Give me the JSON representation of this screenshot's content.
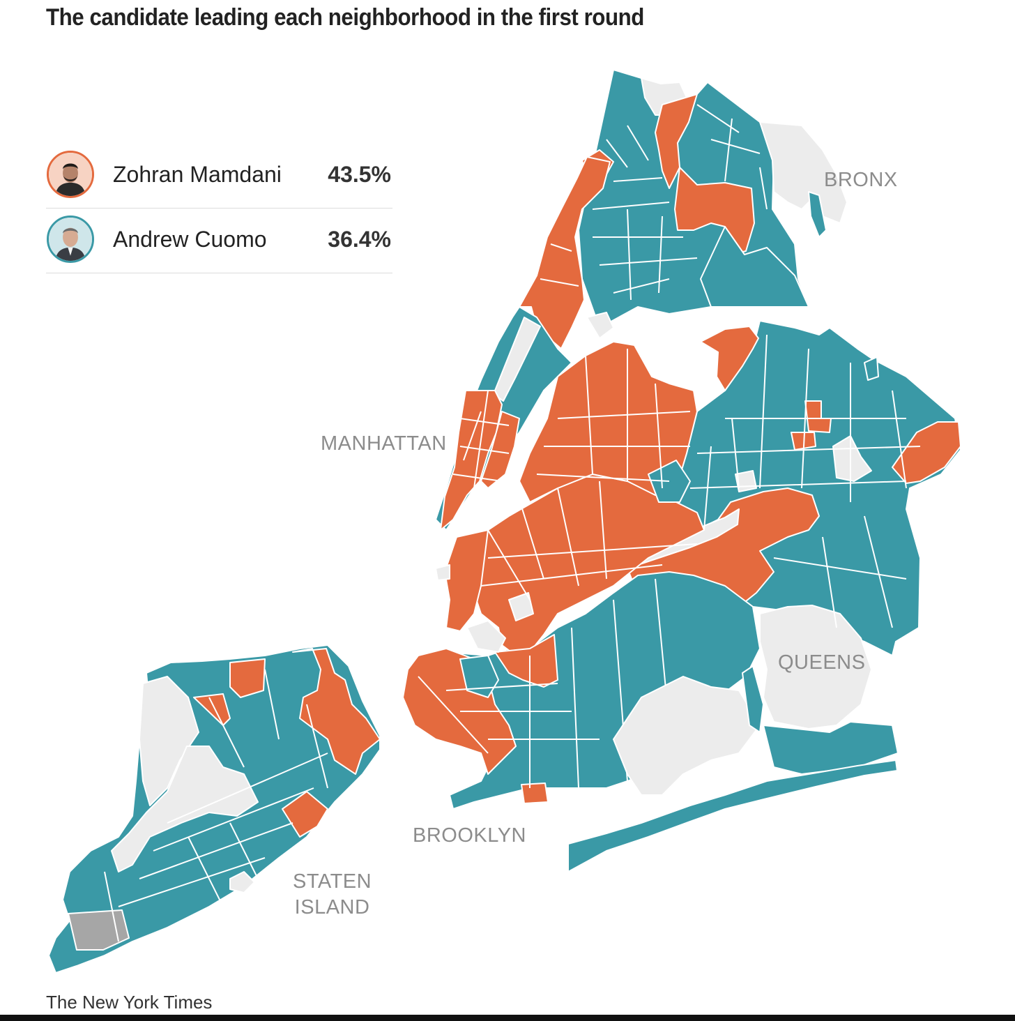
{
  "title": "The candidate leading each neighborhood in the first round",
  "legend": {
    "candidates": [
      {
        "name": "Zohran Mamdani",
        "percent": "43.5%",
        "color": "#e46a3e",
        "avatar": "mamdani-portrait"
      },
      {
        "name": "Andrew Cuomo",
        "percent": "36.4%",
        "color": "#3a99a6",
        "avatar": "cuomo-portrait"
      }
    ]
  },
  "colors": {
    "mamdani": "#e46a3e",
    "cuomo": "#3a99a6",
    "no_data": "#ececec",
    "tie": "#a6a6a6",
    "borders": "#ffffff"
  },
  "borough_labels": {
    "bronx": "BRONX",
    "manhattan": "MANHATTAN",
    "queens": "QUEENS",
    "brooklyn": "BROOKLYN",
    "staten_island_line1": "STATEN",
    "staten_island_line2": "ISLAND"
  },
  "credit": "The New York Times"
}
